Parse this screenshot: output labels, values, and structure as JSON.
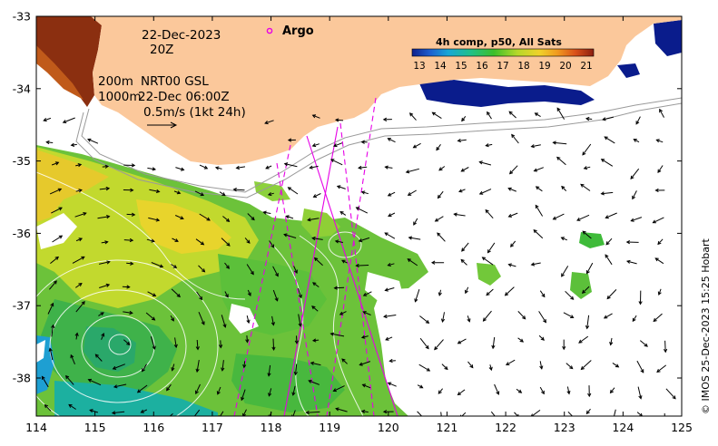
{
  "map": {
    "date_label": "22-Dec-2023",
    "time_label": "20Z",
    "isobath_shallow": "200m",
    "isobath_deep": "1000m",
    "product_label": "NRT00 GSL",
    "product_time": "22-Dec 06:00Z",
    "arrow_scale_label": "0.5m/s (1kt 24h)",
    "argo_label": "Argo",
    "colorbar": {
      "title": "4h comp, p50, All Sats",
      "ticks": [
        "13",
        "14",
        "15",
        "16",
        "17",
        "18",
        "19",
        "20",
        "21"
      ]
    },
    "credit": "© IMOS 25-Dec-2023 15:25 Hobart",
    "axes": {
      "x_ticks": [
        "114",
        "115",
        "116",
        "117",
        "118",
        "119",
        "120",
        "121",
        "122",
        "123",
        "124",
        "125"
      ],
      "y_ticks": [
        "-33",
        "-34",
        "-35",
        "-36",
        "-37",
        "-38"
      ]
    },
    "colors": {
      "land": "#fbc89b",
      "cold": "#0a1c8c",
      "warm": "#8b2f10",
      "argo": "#e600e6",
      "contour": "#ffffff",
      "isobath": "#999999"
    }
  }
}
